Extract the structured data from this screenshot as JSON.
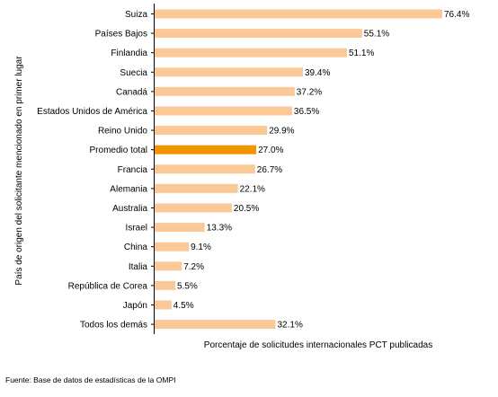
{
  "chart_data": {
    "type": "bar",
    "orientation": "horizontal",
    "categories": [
      "Suiza",
      "Países Bajos",
      "Finlandia",
      "Suecia",
      "Canadá",
      "Estados Unidos de América",
      "Reino Unido",
      "Promedio total",
      "Francia",
      "Alemania",
      "Australia",
      "Israel",
      "China",
      "Italia",
      "República de Corea",
      "Japón",
      "Todos los demás"
    ],
    "values": [
      76.4,
      55.1,
      51.1,
      39.4,
      37.2,
      36.5,
      29.9,
      27.0,
      26.7,
      22.1,
      20.5,
      13.3,
      9.1,
      7.2,
      5.5,
      4.5,
      32.1
    ],
    "value_labels": [
      "76.4%",
      "55.1%",
      "51.1%",
      "39.4%",
      "37.2%",
      "36.5%",
      "29.9%",
      "27.0%",
      "26.7%",
      "22.1%",
      "20.5%",
      "13.3%",
      "9.1%",
      "7.2%",
      "5.5%",
      "4.5%",
      "32.1%"
    ],
    "highlight_category": "Promedio total",
    "xlabel": "Porcentaje de solicitudes internacionales PCT publicadas",
    "ylabel": "País de origen del solicitante mencionado en primer lugar",
    "xlim": [
      0,
      80
    ],
    "grid": false,
    "legend": "none",
    "colors": {
      "bar": "#fbc898",
      "highlight": "#f29400",
      "axis": "#000000"
    }
  },
  "footer": {
    "source": "Fuente:  Base de datos de estadísticas de la OMPI"
  }
}
